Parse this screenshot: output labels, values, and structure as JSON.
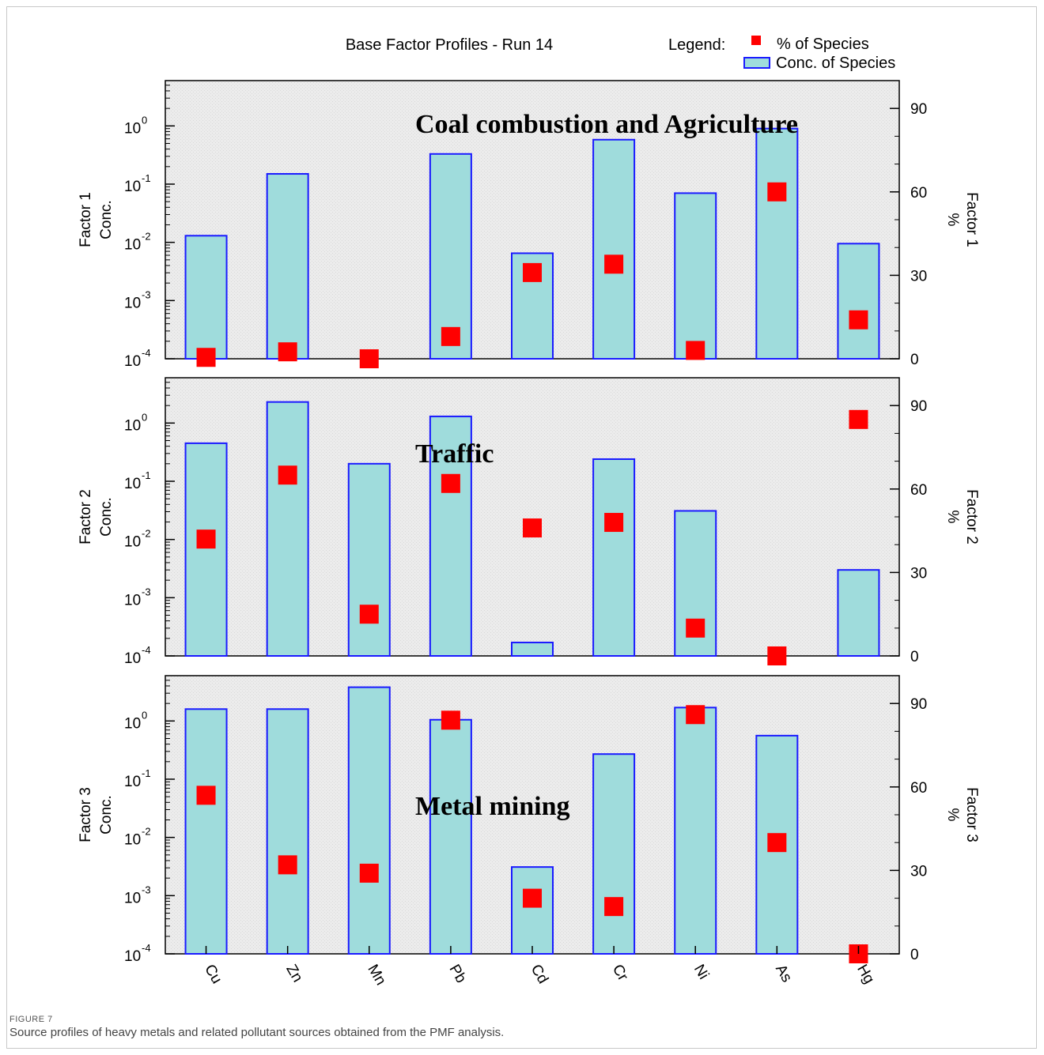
{
  "caption": {
    "label": "FIGURE 7",
    "text": "Source profiles of heavy metals and related pollutant sources obtained from the PMF analysis."
  },
  "colors": {
    "bar_fill": "#9fdcdc",
    "bar_edge": "#1a1aff",
    "marker": "#ff0000",
    "plot_bg": "#ececec"
  },
  "chart_data": {
    "type": "bar",
    "title": "Base Factor Profiles - Run 14",
    "legend": {
      "label": "Legend:",
      "placement": "top-right",
      "entries": [
        "% of Species",
        "Conc. of Species"
      ]
    },
    "categories": [
      "Cu",
      "Zn",
      "Mn",
      "Pb",
      "Cd",
      "Cr",
      "Ni",
      "As",
      "Hg"
    ],
    "y_left_ticks": [
      "10",
      "10",
      "10",
      "10",
      "10"
    ],
    "y_left_exponents": [
      "0",
      "-1",
      "-2",
      "-3",
      "-4"
    ],
    "y_left_scale": "log",
    "y_left_range": [
      0.0001,
      6
    ],
    "y_right_ticks": [
      "90",
      "60",
      "30",
      "0"
    ],
    "y_right_range": [
      0,
      100
    ],
    "grid": false,
    "panels": [
      {
        "left_label_line1": "Factor 1",
        "left_label_line2": "Conc.",
        "right_label_line1": "Factor 1",
        "right_label_line2": "%",
        "annotation": "Coal combustion and Agriculture",
        "series": [
          {
            "name": "Conc. of Species",
            "values": [
              0.013,
              0.15,
              null,
              0.33,
              0.0065,
              0.58,
              0.07,
              0.9,
              0.0095
            ]
          },
          {
            "name": "% of Species",
            "values": [
              0.5,
              2.5,
              0,
              8,
              31,
              34,
              3,
              60,
              14
            ]
          }
        ]
      },
      {
        "left_label_line1": "Factor 2",
        "left_label_line2": "Conc.",
        "right_label_line1": "Factor 2",
        "right_label_line2": "%",
        "annotation": "Traffic",
        "series": [
          {
            "name": "Conc. of Species",
            "values": [
              0.45,
              2.3,
              0.2,
              1.3,
              0.00017,
              0.24,
              0.031,
              null,
              0.003
            ]
          },
          {
            "name": "% of Species",
            "values": [
              42,
              65,
              15,
              62,
              46,
              48,
              10,
              0,
              85
            ]
          }
        ]
      },
      {
        "left_label_line1": "Factor 3",
        "left_label_line2": "Conc.",
        "right_label_line1": "Factor 3",
        "right_label_line2": "%",
        "annotation": "Metal mining",
        "series": [
          {
            "name": "Conc. of Species",
            "values": [
              1.6,
              1.6,
              3.8,
              1.05,
              0.0031,
              0.27,
              1.7,
              0.56,
              null
            ]
          },
          {
            "name": "% of Species",
            "values": [
              57,
              32,
              29,
              84,
              20,
              17,
              86,
              40,
              0
            ]
          }
        ]
      }
    ]
  }
}
